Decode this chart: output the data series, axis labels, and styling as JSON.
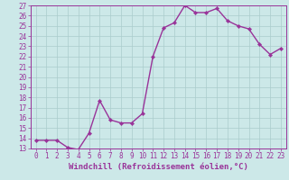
{
  "x": [
    0,
    1,
    2,
    3,
    4,
    5,
    6,
    7,
    8,
    9,
    10,
    11,
    12,
    13,
    14,
    15,
    16,
    17,
    18,
    19,
    20,
    21,
    22,
    23
  ],
  "y": [
    13.8,
    13.8,
    13.8,
    13.1,
    12.9,
    14.5,
    17.7,
    15.8,
    15.5,
    15.5,
    16.4,
    22.0,
    24.8,
    25.3,
    27.0,
    26.3,
    26.3,
    26.7,
    25.5,
    25.0,
    24.7,
    23.2,
    22.2,
    22.8
  ],
  "line_color": "#993399",
  "marker": "D",
  "markersize": 2.2,
  "linewidth": 1.0,
  "xlabel": "Windchill (Refroidissement éolien,°C)",
  "xlim": [
    -0.5,
    23.5
  ],
  "ylim": [
    13,
    27
  ],
  "yticks": [
    13,
    14,
    15,
    16,
    17,
    18,
    19,
    20,
    21,
    22,
    23,
    24,
    25,
    26,
    27
  ],
  "xticks": [
    0,
    1,
    2,
    3,
    4,
    5,
    6,
    7,
    8,
    9,
    10,
    11,
    12,
    13,
    14,
    15,
    16,
    17,
    18,
    19,
    20,
    21,
    22,
    23
  ],
  "bg_color": "#cce8e8",
  "grid_color": "#aacccc",
  "tick_label_fontsize": 5.5,
  "xlabel_fontsize": 6.5
}
